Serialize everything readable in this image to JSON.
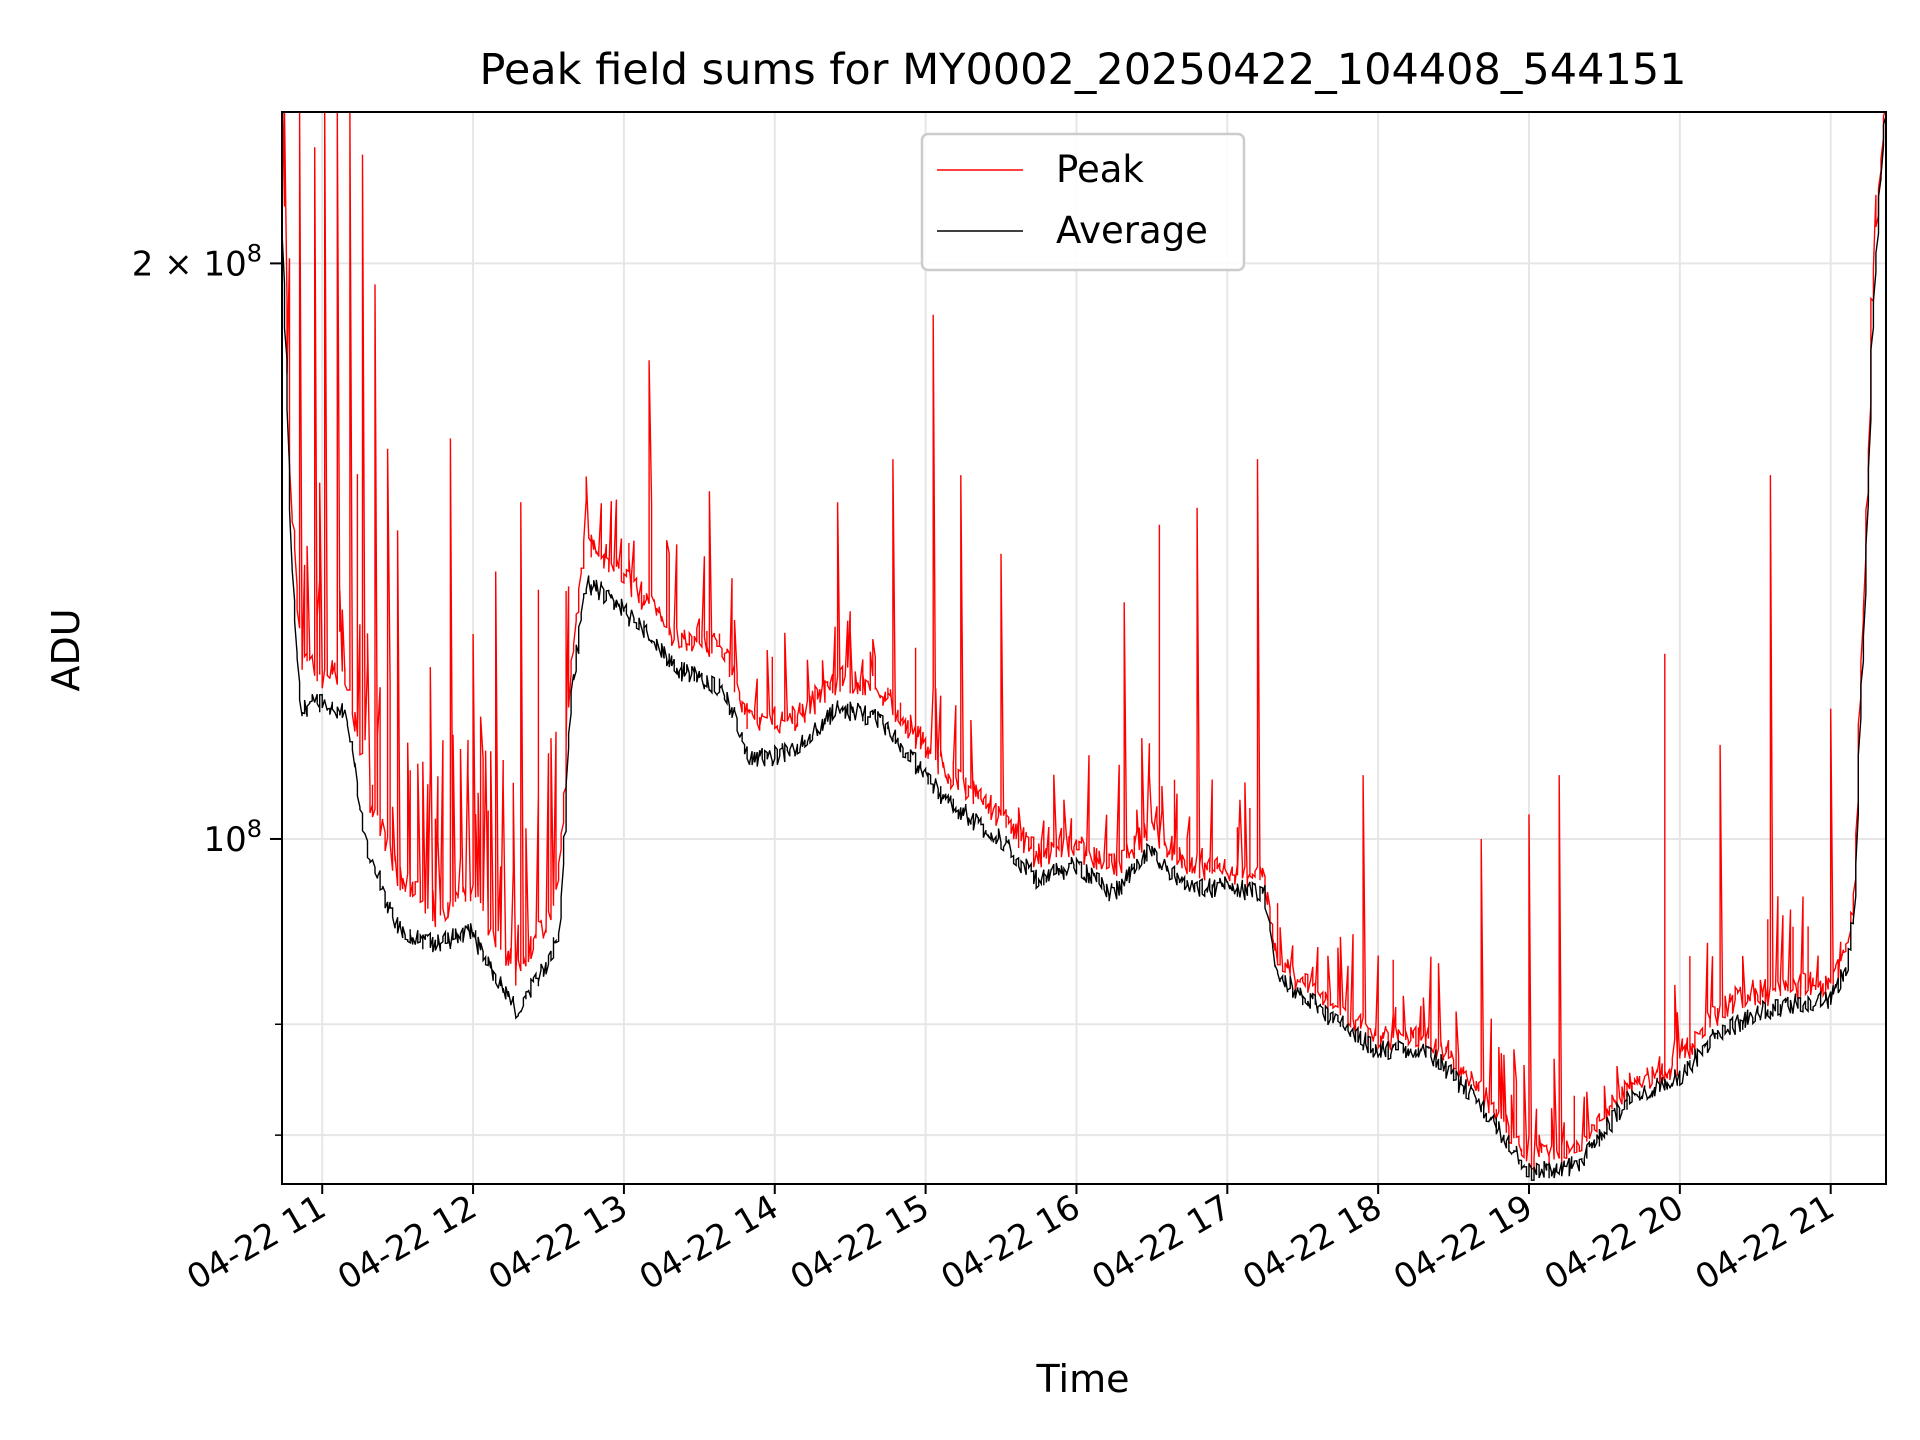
{
  "chart_data": {
    "type": "line",
    "title": "Peak field sums for MY0002_20250422_104408_544151",
    "xlabel": "Time",
    "ylabel": "ADU",
    "x_scale": "time",
    "y_scale": "log",
    "xlim": [
      "2025-04-22 10:44",
      "2025-04-22 21:22"
    ],
    "ylim": [
      66000000,
      240000000
    ],
    "grid": true,
    "legend_position": "top-center",
    "x_ticks": [
      {
        "value": "2025-04-22 11:00",
        "label": "04-22 11"
      },
      {
        "value": "2025-04-22 12:00",
        "label": "04-22 12"
      },
      {
        "value": "2025-04-22 13:00",
        "label": "04-22 13"
      },
      {
        "value": "2025-04-22 14:00",
        "label": "04-22 14"
      },
      {
        "value": "2025-04-22 15:00",
        "label": "04-22 15"
      },
      {
        "value": "2025-04-22 16:00",
        "label": "04-22 16"
      },
      {
        "value": "2025-04-22 17:00",
        "label": "04-22 17"
      },
      {
        "value": "2025-04-22 18:00",
        "label": "04-22 18"
      },
      {
        "value": "2025-04-22 19:00",
        "label": "04-22 19"
      },
      {
        "value": "2025-04-22 20:00",
        "label": "04-22 20"
      },
      {
        "value": "2025-04-22 21:00",
        "label": "04-22 21"
      }
    ],
    "y_ticks_labeled": [
      {
        "value": 100000000,
        "base": "10",
        "exp": "8"
      },
      {
        "value": 200000000,
        "mantissa": "2",
        "base": "10",
        "exp": "8"
      }
    ],
    "y_minor_ticks": [
      70000000,
      80000000
    ],
    "colors": {
      "peak": "#ff0000",
      "average": "#000000"
    },
    "series": [
      {
        "name": "Peak",
        "color": "#ff0000",
        "baseline": [
          [
            "2025-04-22 10:44",
            230000000
          ],
          [
            "2025-04-22 10:48",
            150000000
          ],
          [
            "2025-04-22 10:52",
            125000000
          ],
          [
            "2025-04-22 11:00",
            122000000
          ],
          [
            "2025-04-22 11:10",
            122000000
          ],
          [
            "2025-04-22 11:18",
            106000000
          ],
          [
            "2025-04-22 11:30",
            96000000
          ],
          [
            "2025-04-22 11:45",
            91500000
          ],
          [
            "2025-04-22 12:00",
            94000000
          ],
          [
            "2025-04-22 12:05",
            91000000
          ],
          [
            "2025-04-22 12:18",
            85000000
          ],
          [
            "2025-04-22 12:30",
            91000000
          ],
          [
            "2025-04-22 12:35",
            96000000
          ],
          [
            "2025-04-22 12:40",
            125000000
          ],
          [
            "2025-04-22 12:45",
            142000000
          ],
          [
            "2025-04-22 12:55",
            140000000
          ],
          [
            "2025-04-22 13:10",
            133000000
          ],
          [
            "2025-04-22 13:20",
            128000000
          ],
          [
            "2025-04-22 13:40",
            126000000
          ],
          [
            "2025-04-22 13:50",
            115000000
          ],
          [
            "2025-04-22 14:00",
            115000000
          ],
          [
            "2025-04-22 14:10",
            116000000
          ],
          [
            "2025-04-22 14:25",
            121000000
          ],
          [
            "2025-04-22 14:40",
            121000000
          ],
          [
            "2025-04-22 15:00",
            112000000
          ],
          [
            "2025-04-22 15:10",
            108000000
          ],
          [
            "2025-04-22 15:30",
            103000000
          ],
          [
            "2025-04-22 15:45",
            98000000
          ],
          [
            "2025-04-22 16:00",
            99000000
          ],
          [
            "2025-04-22 16:15",
            96500000
          ],
          [
            "2025-04-22 16:30",
            101000000
          ],
          [
            "2025-04-22 16:45",
            97000000
          ],
          [
            "2025-04-22 17:00",
            96000000
          ],
          [
            "2025-04-22 17:15",
            95000000
          ],
          [
            "2025-04-22 17:20",
            86000000
          ],
          [
            "2025-04-22 17:40",
            82000000
          ],
          [
            "2025-04-22 18:00",
            78500000
          ],
          [
            "2025-04-22 18:20",
            78500000
          ],
          [
            "2025-04-22 18:40",
            74000000
          ],
          [
            "2025-04-22 19:00",
            68000000
          ],
          [
            "2025-04-22 19:20",
            68500000
          ],
          [
            "2025-04-22 19:40",
            74000000
          ],
          [
            "2025-04-22 20:00",
            76000000
          ],
          [
            "2025-04-22 20:15",
            81000000
          ],
          [
            "2025-04-22 20:30",
            83000000
          ],
          [
            "2025-04-22 20:45",
            83500000
          ],
          [
            "2025-04-22 21:00",
            84000000
          ],
          [
            "2025-04-22 21:07",
            87000000
          ],
          [
            "2025-04-22 21:10",
            94000000
          ],
          [
            "2025-04-22 21:14",
            135000000
          ],
          [
            "2025-04-22 21:18",
            200000000
          ],
          [
            "2025-04-22 21:22",
            240000000
          ]
        ],
        "spikes": [
          [
            "2025-04-22 10:46",
            240000000
          ],
          [
            "2025-04-22 10:52",
            240000000
          ],
          [
            "2025-04-22 10:58",
            230000000
          ],
          [
            "2025-04-22 11:02",
            240000000
          ],
          [
            "2025-04-22 11:07",
            240000000
          ],
          [
            "2025-04-22 11:12",
            240000000
          ],
          [
            "2025-04-22 11:17",
            228000000
          ],
          [
            "2025-04-22 11:22",
            195000000
          ],
          [
            "2025-04-22 11:27",
            160000000
          ],
          [
            "2025-04-22 11:31",
            145000000
          ],
          [
            "2025-04-22 11:44",
            123000000
          ],
          [
            "2025-04-22 11:52",
            162000000
          ],
          [
            "2025-04-22 12:01",
            128000000
          ],
          [
            "2025-04-22 12:10",
            138000000
          ],
          [
            "2025-04-22 12:20",
            150000000
          ],
          [
            "2025-04-22 12:27",
            135000000
          ],
          [
            "2025-04-22 13:11",
            178000000
          ],
          [
            "2025-04-22 13:35",
            152000000
          ],
          [
            "2025-04-22 14:26",
            150000000
          ],
          [
            "2025-04-22 14:48",
            158000000
          ],
          [
            "2025-04-22 15:04",
            188000000
          ],
          [
            "2025-04-22 15:15",
            155000000
          ],
          [
            "2025-04-22 15:31",
            141000000
          ],
          [
            "2025-04-22 16:20",
            133000000
          ],
          [
            "2025-04-22 16:34",
            146000000
          ],
          [
            "2025-04-22 16:49",
            149000000
          ],
          [
            "2025-04-22 17:13",
            158000000
          ],
          [
            "2025-04-22 17:55",
            108000000
          ],
          [
            "2025-04-22 18:42",
            100000000
          ],
          [
            "2025-04-22 19:01",
            103000000
          ],
          [
            "2025-04-22 19:13",
            108000000
          ],
          [
            "2025-04-22 19:55",
            125000000
          ],
          [
            "2025-04-22 20:17",
            112000000
          ],
          [
            "2025-04-22 20:37",
            155000000
          ],
          [
            "2025-04-22 21:01",
            117000000
          ]
        ]
      },
      {
        "name": "Average",
        "color": "#000000",
        "values": [
          [
            "2025-04-22 10:44",
            225000000
          ],
          [
            "2025-04-22 10:48",
            140000000
          ],
          [
            "2025-04-22 10:52",
            117000000
          ],
          [
            "2025-04-22 11:00",
            118000000
          ],
          [
            "2025-04-22 11:10",
            116000000
          ],
          [
            "2025-04-22 11:18",
            99000000
          ],
          [
            "2025-04-22 11:30",
            90000000
          ],
          [
            "2025-04-22 11:45",
            88000000
          ],
          [
            "2025-04-22 12:00",
            89500000
          ],
          [
            "2025-04-22 12:05",
            86500000
          ],
          [
            "2025-04-22 12:18",
            81500000
          ],
          [
            "2025-04-22 12:30",
            86000000
          ],
          [
            "2025-04-22 12:35",
            90000000
          ],
          [
            "2025-04-22 12:40",
            120000000
          ],
          [
            "2025-04-22 12:45",
            136000000
          ],
          [
            "2025-04-22 12:55",
            134000000
          ],
          [
            "2025-04-22 13:10",
            128000000
          ],
          [
            "2025-04-22 13:20",
            123000000
          ],
          [
            "2025-04-22 13:40",
            120000000
          ],
          [
            "2025-04-22 13:50",
            110500000
          ],
          [
            "2025-04-22 14:00",
            110500000
          ],
          [
            "2025-04-22 14:10",
            111500000
          ],
          [
            "2025-04-22 14:25",
            117000000
          ],
          [
            "2025-04-22 14:40",
            116000000
          ],
          [
            "2025-04-22 15:00",
            108000000
          ],
          [
            "2025-04-22 15:10",
            104500000
          ],
          [
            "2025-04-22 15:30",
            100000000
          ],
          [
            "2025-04-22 15:45",
            95000000
          ],
          [
            "2025-04-22 16:00",
            97000000
          ],
          [
            "2025-04-22 16:15",
            93500000
          ],
          [
            "2025-04-22 16:30",
            98500000
          ],
          [
            "2025-04-22 16:45",
            94000000
          ],
          [
            "2025-04-22 17:00",
            94500000
          ],
          [
            "2025-04-22 17:15",
            93500000
          ],
          [
            "2025-04-22 17:20",
            85000000
          ],
          [
            "2025-04-22 17:40",
            81000000
          ],
          [
            "2025-04-22 18:00",
            77500000
          ],
          [
            "2025-04-22 18:20",
            77500000
          ],
          [
            "2025-04-22 18:40",
            73000000
          ],
          [
            "2025-04-22 19:00",
            67000000
          ],
          [
            "2025-04-22 19:20",
            67500000
          ],
          [
            "2025-04-22 19:40",
            73000000
          ],
          [
            "2025-04-22 20:00",
            75000000
          ],
          [
            "2025-04-22 20:15",
            79000000
          ],
          [
            "2025-04-22 20:30",
            81000000
          ],
          [
            "2025-04-22 20:45",
            82000000
          ],
          [
            "2025-04-22 21:00",
            82500000
          ],
          [
            "2025-04-22 21:07",
            85500000
          ],
          [
            "2025-04-22 21:10",
            92000000
          ],
          [
            "2025-04-22 21:14",
            130000000
          ],
          [
            "2025-04-22 21:18",
            195000000
          ],
          [
            "2025-04-22 21:22",
            240000000
          ]
        ]
      }
    ]
  }
}
